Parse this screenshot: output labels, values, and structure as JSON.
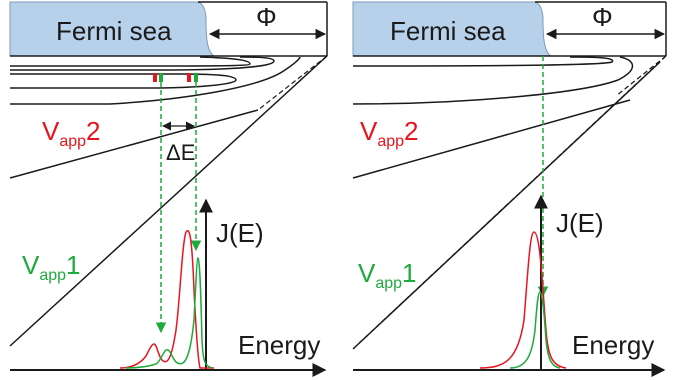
{
  "panels": [
    {
      "fermi_label": "Fermi sea",
      "work_function": "Φ",
      "vapp2_label": {
        "main": "V",
        "sub": "app",
        "num": "2"
      },
      "vapp1_label": {
        "main": "V",
        "sub": "app",
        "num": "1"
      },
      "delta_e_label": "ΔE",
      "current_label": "J(E)",
      "energy_label": "Energy"
    },
    {
      "fermi_label": "Fermi sea",
      "work_function": "Φ",
      "vapp2_label": {
        "main": "V",
        "sub": "app",
        "num": "2"
      },
      "vapp1_label": {
        "main": "V",
        "sub": "app",
        "num": "1"
      },
      "current_label": "J(E)",
      "energy_label": "Energy"
    }
  ],
  "colors": {
    "fermi_fill": "#b7d1ea",
    "vapp2": "#e8141e",
    "vapp1": "#1eaa3c",
    "lines": "#1a1a1a"
  }
}
